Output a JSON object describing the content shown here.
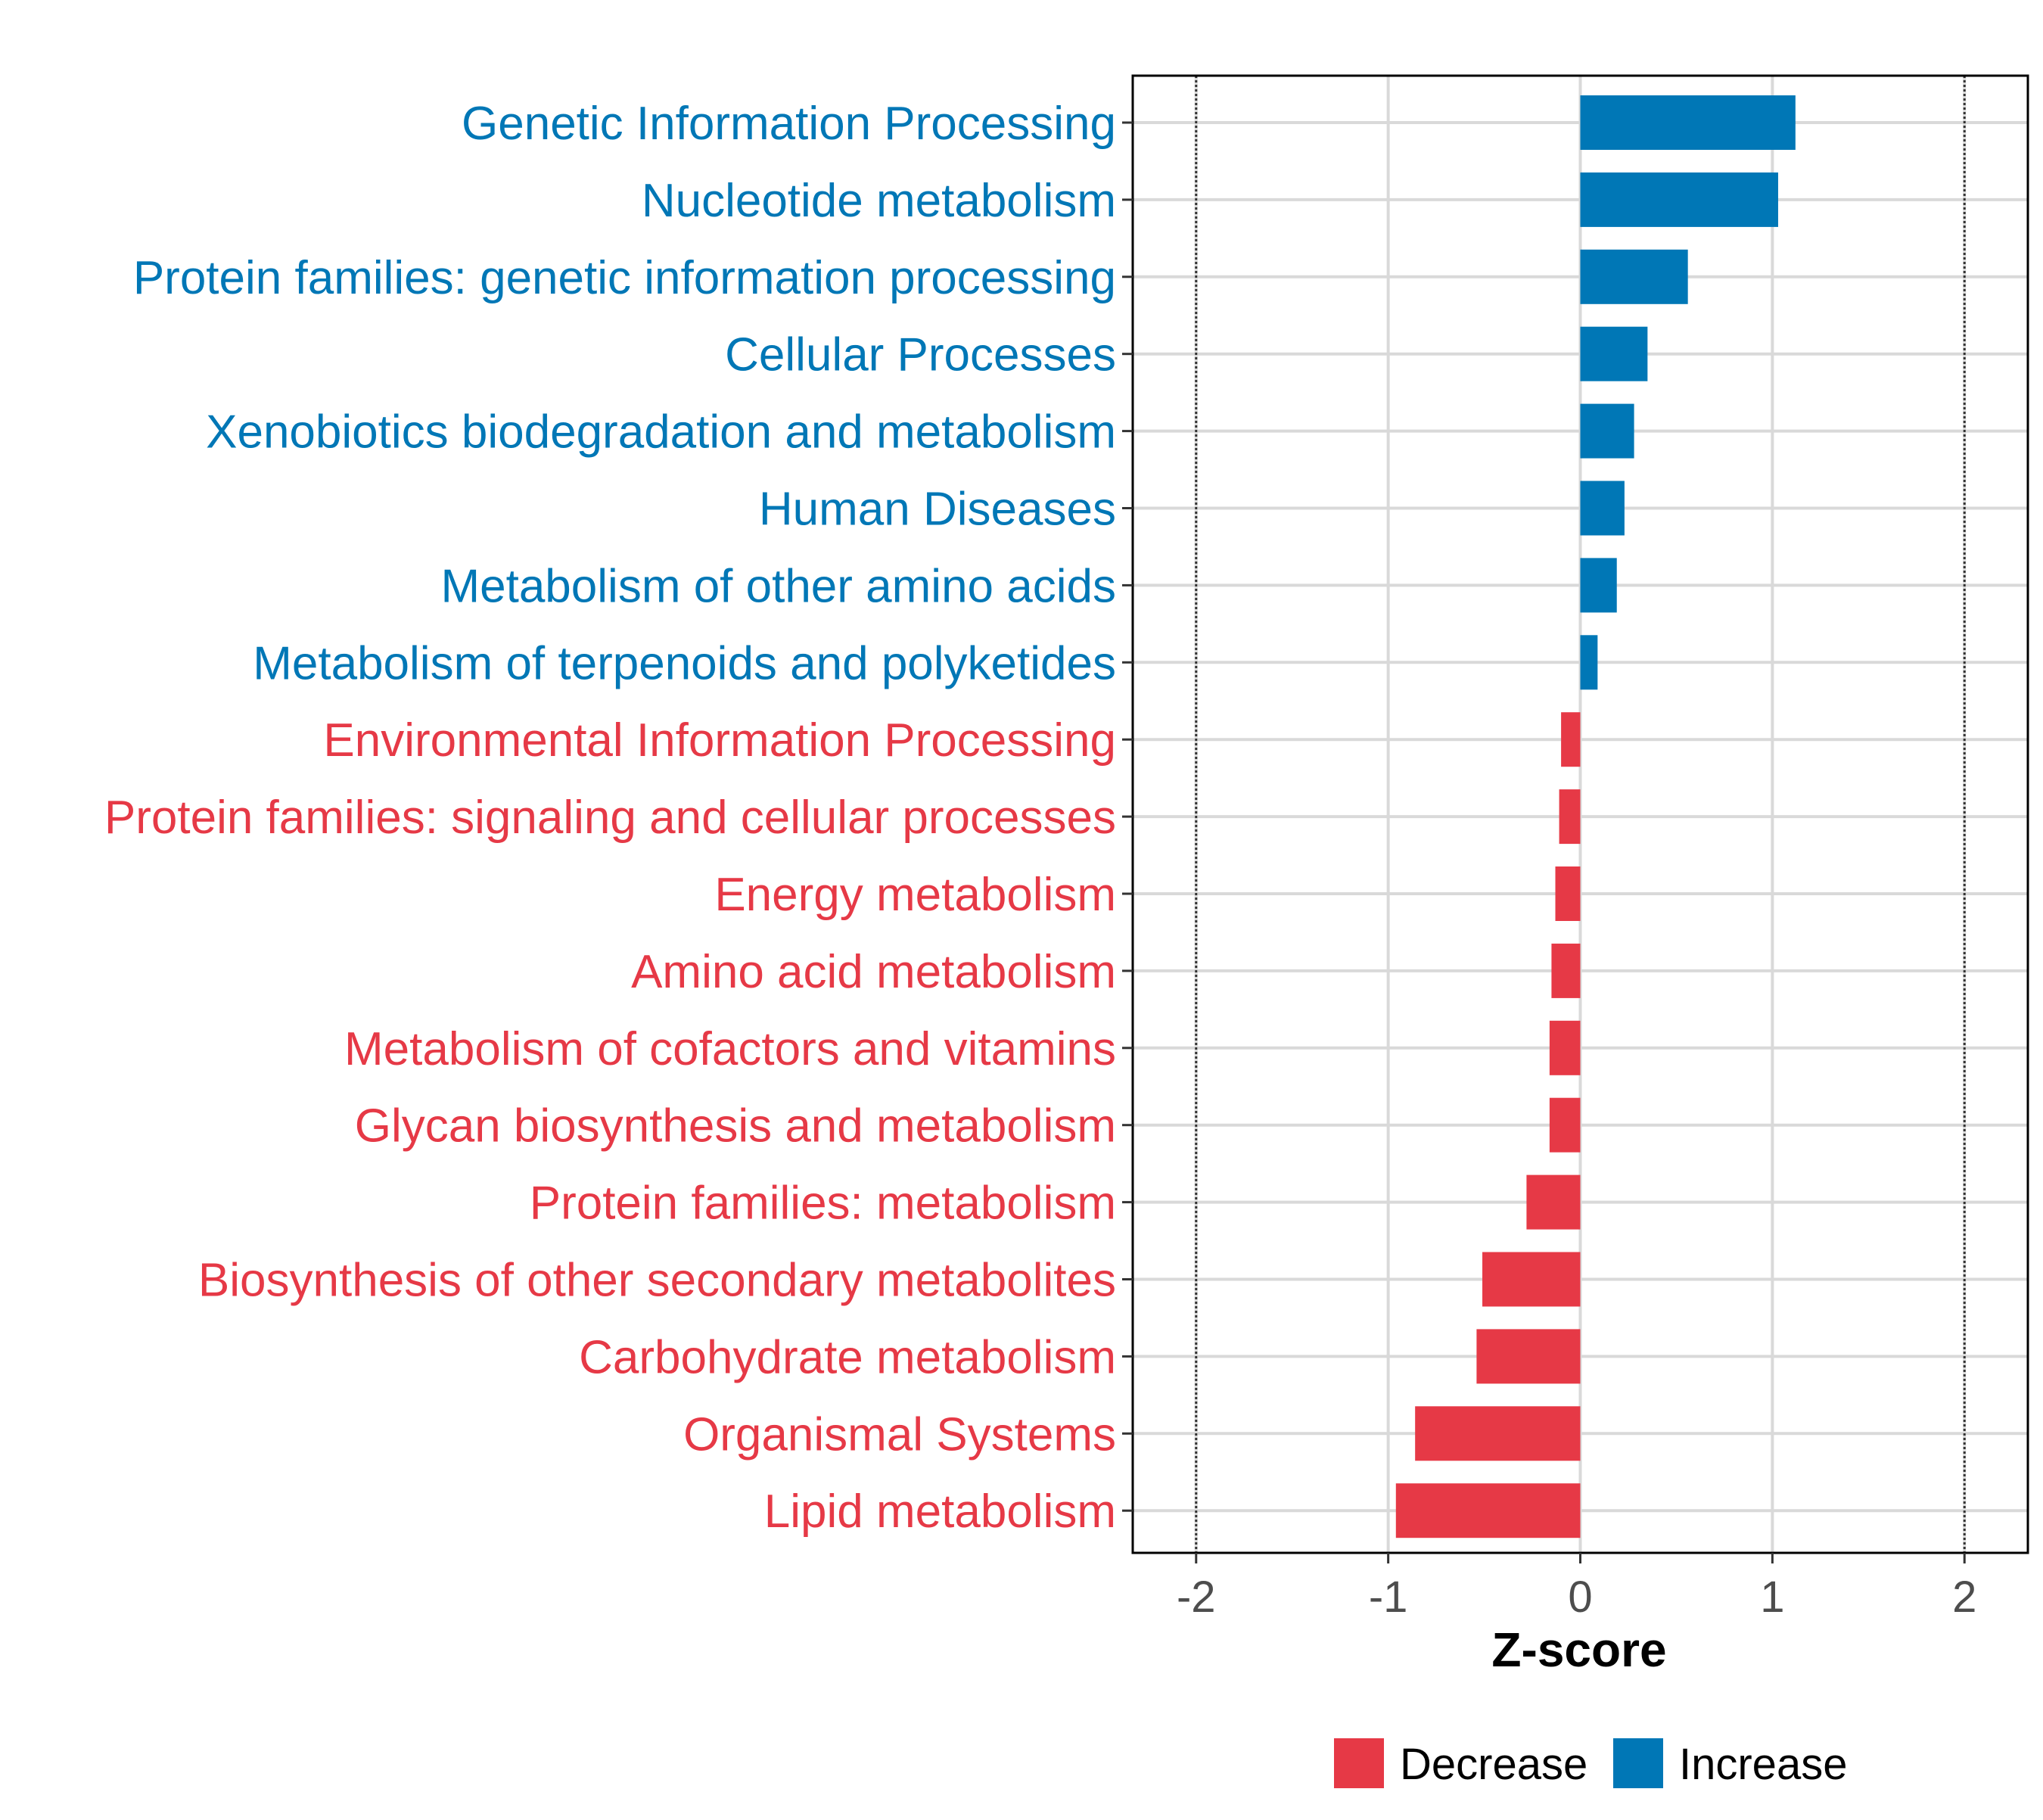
{
  "chart_data": {
    "type": "bar",
    "orientation": "horizontal",
    "xlabel": "Z-score",
    "ylabel": "",
    "xlim": [
      -2.33,
      2.33
    ],
    "xticks": [
      -2,
      -1,
      0,
      1,
      2
    ],
    "xtick_labels": [
      "-2",
      "-1",
      "0",
      "1",
      "2"
    ],
    "reference_lines": [
      -2,
      2
    ],
    "grid": true,
    "legend_position": "bottom",
    "legend": [
      {
        "key": "Decrease",
        "label": "Decrease",
        "color": "#E63946"
      },
      {
        "key": "Increase",
        "label": "Increase",
        "color": "#0077B6"
      }
    ],
    "categories": [
      "Genetic Information Processing",
      "Nucleotide metabolism",
      "Protein families: genetic information processing",
      "Cellular Processes",
      "Xenobiotics biodegradation and metabolism",
      "Human Diseases",
      "Metabolism of other amino acids",
      "Metabolism of terpenoids and polyketides",
      "Environmental Information Processing",
      "Protein families: signaling and cellular processes",
      "Energy metabolism",
      "Amino acid metabolism",
      "Metabolism of cofactors and vitamins",
      "Glycan biosynthesis and metabolism",
      "Protein families: metabolism",
      "Biosynthesis of other secondary metabolites",
      "Carbohydrate metabolism",
      "Organismal Systems",
      "Lipid metabolism"
    ],
    "values": [
      1.12,
      1.03,
      0.56,
      0.35,
      0.28,
      0.23,
      0.19,
      0.09,
      -0.1,
      -0.11,
      -0.13,
      -0.15,
      -0.16,
      -0.16,
      -0.28,
      -0.51,
      -0.54,
      -0.86,
      -0.96
    ],
    "groups": [
      "Increase",
      "Increase",
      "Increase",
      "Increase",
      "Increase",
      "Increase",
      "Increase",
      "Increase",
      "Decrease",
      "Decrease",
      "Decrease",
      "Decrease",
      "Decrease",
      "Decrease",
      "Decrease",
      "Decrease",
      "Decrease",
      "Decrease",
      "Decrease"
    ]
  }
}
